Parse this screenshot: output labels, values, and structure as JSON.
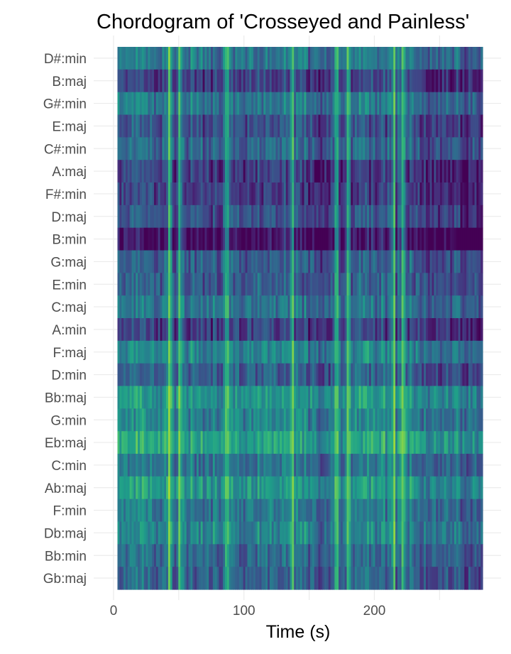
{
  "chart_data": {
    "type": "heatmap",
    "title": "Chordogram of 'Crosseyed and Painless'",
    "xlabel": "Time (s)",
    "ylabel": "",
    "xlim": [
      0,
      283
    ],
    "x_ticks": [
      0,
      100,
      200
    ],
    "y_categories": [
      "D#:min",
      "B:maj",
      "G#:min",
      "E:maj",
      "C#:min",
      "A:maj",
      "F#:min",
      "D:maj",
      "B:min",
      "G:maj",
      "E:min",
      "C:maj",
      "A:min",
      "F:maj",
      "D:min",
      "Bb:maj",
      "G:min",
      "Eb:maj",
      "C:min",
      "Ab:maj",
      "F:min",
      "Db:maj",
      "Bb:min",
      "Gb:maj"
    ],
    "time_range": [
      3,
      283
    ],
    "row_base_level": [
      0.4,
      0.2,
      0.4,
      0.25,
      0.32,
      0.18,
      0.18,
      0.25,
      0.05,
      0.3,
      0.3,
      0.38,
      0.2,
      0.45,
      0.3,
      0.52,
      0.45,
      0.58,
      0.38,
      0.52,
      0.4,
      0.45,
      0.35,
      0.32
    ],
    "bright_columns_s": [
      43,
      51,
      87,
      137,
      171,
      180,
      215,
      222
    ],
    "dark_regions_s": [
      [
        148,
        175
      ],
      [
        232,
        283
      ]
    ],
    "grid": true,
    "legend": "none",
    "colormap": "viridis"
  }
}
